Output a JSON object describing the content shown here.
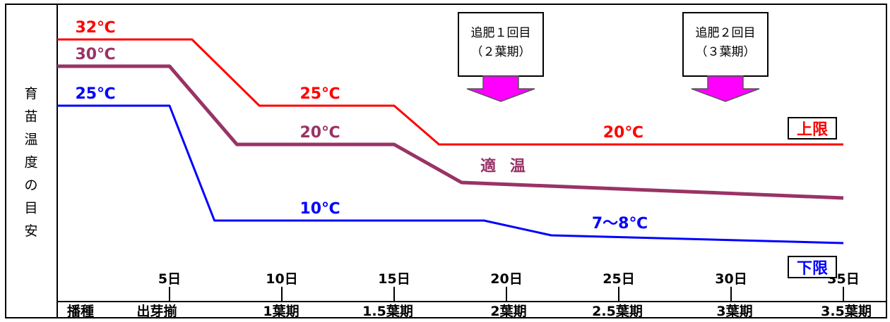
{
  "chart_data": {
    "type": "line",
    "y_axis_label": [
      "育",
      "苗",
      "温",
      "度",
      "の",
      "目",
      "安"
    ],
    "x_ticks": [
      "5日",
      "10日",
      "15日",
      "20日",
      "25日",
      "30日",
      "35日"
    ],
    "x_range_days": [
      0,
      35
    ],
    "stages": [
      "播種",
      "出芽揃",
      "1葉期",
      "1.5葉期",
      "2葉期",
      "2.5葉期",
      "3葉期",
      "3.5葉期"
    ],
    "series": [
      {
        "name": "上限",
        "color": "#ff0000",
        "points": [
          [
            0,
            32
          ],
          [
            6,
            32
          ],
          [
            9,
            25
          ],
          [
            15,
            25
          ],
          [
            17,
            20
          ],
          [
            35,
            20
          ]
        ],
        "labels": [
          {
            "text": "32℃",
            "day": 0.8,
            "temp": 32
          },
          {
            "text": "25℃",
            "day": 10.8,
            "temp": 25
          },
          {
            "text": "20℃",
            "day": 24.3,
            "temp": 20
          }
        ]
      },
      {
        "name": "適温",
        "color": "#993366",
        "points": [
          [
            0,
            30
          ],
          [
            5,
            30
          ],
          [
            8,
            20
          ],
          [
            15,
            20
          ],
          [
            18,
            15
          ],
          [
            35,
            13
          ]
        ],
        "labels": [
          {
            "text": "30℃",
            "day": 0.8,
            "temp": 30
          },
          {
            "text": "20℃",
            "day": 10.8,
            "temp": 20
          }
        ]
      },
      {
        "name": "下限",
        "color": "#0000ff",
        "points": [
          [
            0,
            25
          ],
          [
            5,
            25
          ],
          [
            7,
            10
          ],
          [
            19,
            10
          ],
          [
            22,
            8
          ],
          [
            35,
            7.5
          ]
        ],
        "labels": [
          {
            "text": "25℃",
            "day": 0.8,
            "temp": 25
          },
          {
            "text": "10℃",
            "day": 10.8,
            "temp": 10
          },
          {
            "text": "7～8℃",
            "day": 23.8,
            "temp": 8
          }
        ]
      }
    ],
    "legend_tags": {
      "upper": "上限",
      "optimum": "適 温",
      "lower": "下限"
    },
    "annotations": [
      {
        "lines": [
          "追肥１回目",
          "（２葉期）"
        ],
        "day": 20
      },
      {
        "lines": [
          "追肥２回目",
          "（３葉期）"
        ],
        "day": 30
      }
    ],
    "colors": {
      "upper": "#ff0000",
      "optimum": "#993366",
      "lower": "#0000ff",
      "arrow": "#ff00ff"
    }
  }
}
